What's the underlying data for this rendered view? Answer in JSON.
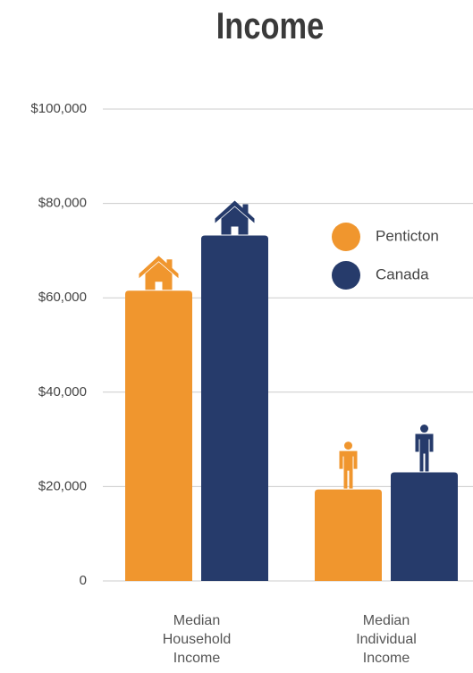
{
  "chart_data": {
    "type": "bar",
    "title": "Income",
    "categories": [
      "Median Household Income",
      "Median Individual Income"
    ],
    "series": [
      {
        "name": "Penticton",
        "color": "#f0962e",
        "values": [
          61500,
          19400
        ]
      },
      {
        "name": "Canada",
        "color": "#263b6b",
        "values": [
          73200,
          23000
        ]
      }
    ],
    "ylim": [
      0,
      100000
    ],
    "yticks": [
      0,
      {
        "value": 20000,
        "label": "$20,000"
      },
      {
        "value": 40000,
        "label": "$40,000"
      },
      {
        "value": 60000,
        "label": "$60,000"
      },
      {
        "value": 80000,
        "label": "$80,000"
      },
      {
        "value": 100000,
        "label": "$100,000"
      }
    ],
    "grid": true,
    "legend": "upper right"
  }
}
